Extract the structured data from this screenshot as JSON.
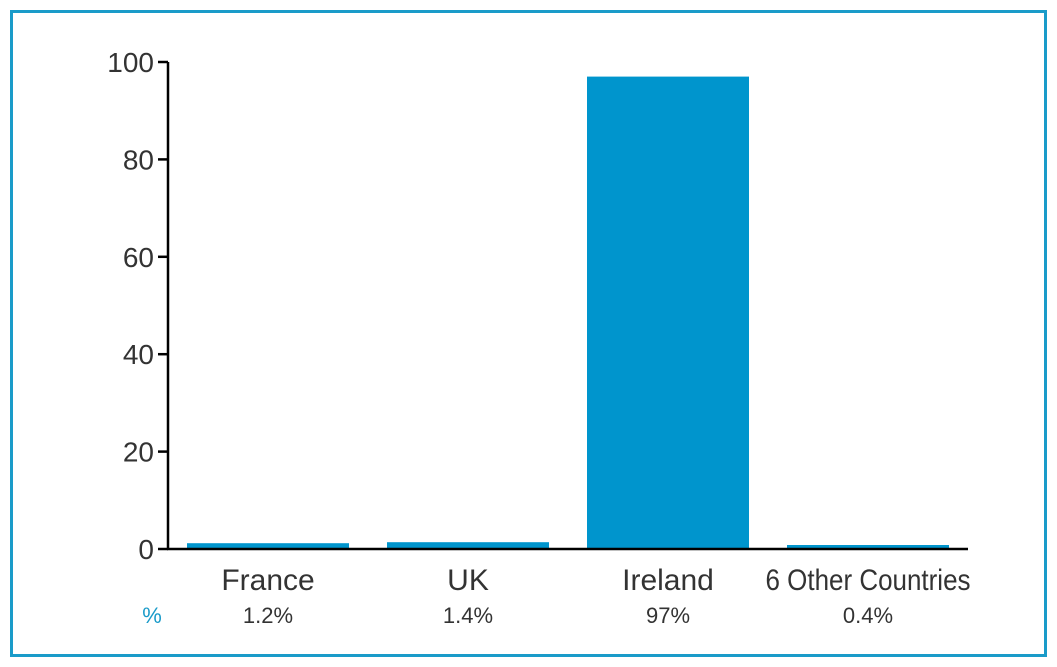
{
  "chart_data": {
    "type": "bar",
    "categories": [
      "France",
      "UK",
      "Ireland",
      "6 Other Countries"
    ],
    "values": [
      1.2,
      1.4,
      97,
      0.4
    ],
    "value_labels": [
      "1.2%",
      "1.4%",
      "97%",
      "0.4%"
    ],
    "value_row_label": "%",
    "title": "",
    "xlabel": "",
    "ylabel": "",
    "ylim": [
      0,
      100
    ],
    "yticks": [
      0,
      20,
      40,
      60,
      80,
      100
    ],
    "grid": false,
    "legend": "none",
    "colors": {
      "bar": "#0095cd",
      "frame": "#1a9bc9",
      "axis": "#000000",
      "text": "#333333",
      "pct_symbol": "#1a9bc9"
    }
  }
}
